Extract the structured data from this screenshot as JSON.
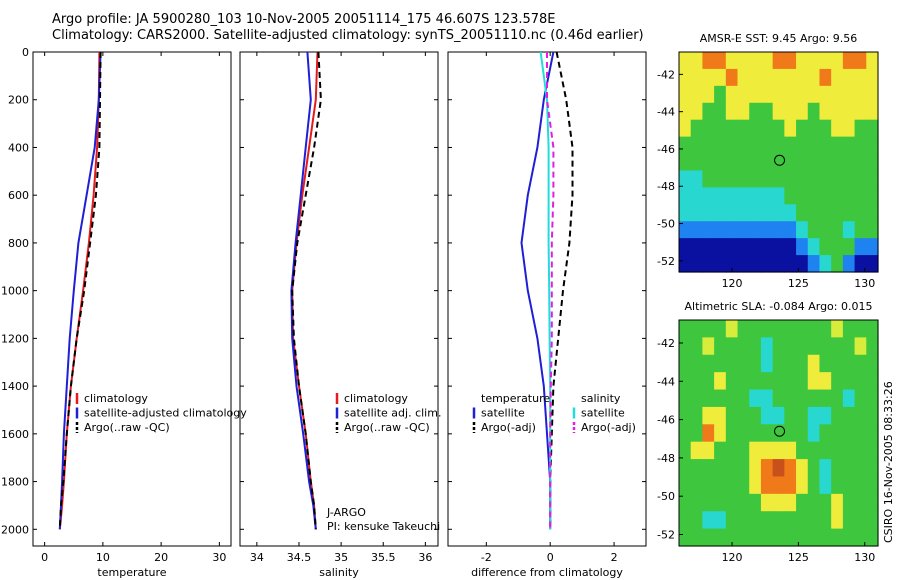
{
  "title_line1": "Argo profile: JA 5900280_103 10-Nov-2005 20051114_175 46.607S 123.578E",
  "title_line2": "Climatology: CARS2000. Satellite-adjusted climatology: synTS_20051110.nc (0.46d earlier)",
  "side_label": "CSIRO 16-Nov-2005 08:33:26",
  "colors": {
    "red": "#e41a1c",
    "blue": "#1f1fd6",
    "black": "#000000",
    "cyan": "#22dcdc",
    "magenta": "#e020e0"
  },
  "chart_data": [
    {
      "type": "line",
      "name": "temperature-panel",
      "xlabel": "temperature",
      "ylabel": "",
      "xlim": [
        -2,
        32
      ],
      "ylim": [
        2070,
        0
      ],
      "y_inverted": true,
      "xticks": [
        0,
        10,
        20,
        30
      ],
      "yticks": [
        0,
        200,
        400,
        600,
        800,
        1000,
        1200,
        1400,
        1600,
        1800,
        2000
      ],
      "legend": {
        "position": "lower-right",
        "entries": [
          "climatology",
          "satellite-adjusted climatology",
          "Argo(..raw -QC)"
        ]
      },
      "series": [
        {
          "name": "climatology",
          "color": "red",
          "dash": false,
          "x": [
            9.4,
            9.3,
            9.0,
            8.4,
            7.6,
            6.6,
            5.5,
            4.5,
            3.8,
            3.3,
            3.0,
            2.8,
            2.6
          ],
          "y": [
            0,
            200,
            400,
            600,
            800,
            1000,
            1200,
            1400,
            1600,
            1800,
            1900,
            1950,
            2000
          ]
        },
        {
          "name": "satellite-adjusted climatology",
          "color": "blue",
          "dash": false,
          "x": [
            9.6,
            9.3,
            8.6,
            7.2,
            5.8,
            5.0,
            4.3,
            3.8,
            3.3,
            3.0,
            2.8,
            2.6
          ],
          "y": [
            0,
            200,
            400,
            600,
            800,
            1000,
            1200,
            1400,
            1600,
            1800,
            1900,
            2000
          ]
        },
        {
          "name": "Argo(..raw -QC)",
          "color": "black",
          "dash": true,
          "x": [
            9.6,
            9.5,
            9.4,
            8.8,
            7.8,
            6.8,
            5.5,
            4.5,
            3.8,
            3.2,
            2.8,
            2.6
          ],
          "y": [
            0,
            200,
            400,
            600,
            800,
            1000,
            1200,
            1400,
            1600,
            1800,
            1900,
            2000
          ]
        }
      ]
    },
    {
      "type": "line",
      "name": "salinity-panel",
      "xlabel": "salinity",
      "ylabel": "",
      "xlim": [
        33.8,
        36.15
      ],
      "ylim": [
        2070,
        0
      ],
      "y_inverted": true,
      "xticks": [
        34,
        34.5,
        35,
        35.5,
        36
      ],
      "yticks": [],
      "legend": {
        "position": "lower-right",
        "entries": [
          "climatology",
          "satellite adj. clim.",
          "Argo(..raw -QC)"
        ]
      },
      "annotation": [
        "J-ARGO",
        "PI: kensuke Takeuchi"
      ],
      "series": [
        {
          "name": "climatology",
          "color": "red",
          "dash": false,
          "x": [
            34.72,
            34.7,
            34.62,
            34.54,
            34.47,
            34.42,
            34.43,
            34.5,
            34.58,
            34.64,
            34.68,
            34.7
          ],
          "y": [
            0,
            200,
            400,
            600,
            800,
            1000,
            1200,
            1400,
            1600,
            1800,
            1900,
            2000
          ]
        },
        {
          "name": "satellite adj. clim.",
          "color": "blue",
          "dash": false,
          "x": [
            34.6,
            34.64,
            34.58,
            34.52,
            34.46,
            34.41,
            34.42,
            34.47,
            34.55,
            34.62,
            34.67,
            34.7
          ],
          "y": [
            0,
            200,
            400,
            600,
            800,
            1000,
            1200,
            1400,
            1600,
            1800,
            1900,
            2000
          ]
        },
        {
          "name": "Argo(..raw -QC)",
          "color": "black",
          "dash": true,
          "x": [
            34.73,
            34.76,
            34.68,
            34.58,
            34.48,
            34.42,
            34.44,
            34.5,
            34.58,
            34.64,
            34.68,
            34.7
          ],
          "y": [
            0,
            200,
            400,
            600,
            800,
            1000,
            1200,
            1400,
            1600,
            1800,
            1900,
            2000
          ]
        }
      ]
    },
    {
      "type": "line",
      "name": "difference-panel",
      "xlabel": "difference from climatology",
      "ylabel": "",
      "xlim": [
        -3.2,
        3.0
      ],
      "ylim": [
        2070,
        0
      ],
      "y_inverted": true,
      "xticks": [
        -2,
        0,
        2
      ],
      "yticks": [],
      "legend": {
        "position": "lower-right",
        "groups": [
          {
            "heading": "temperature",
            "entries": [
              "satellite",
              "Argo(-adj)"
            ]
          },
          {
            "heading": "salinity",
            "entries": [
              "satellite",
              "Argo(-adj)"
            ]
          }
        ]
      },
      "series": [
        {
          "name": "temperature satellite",
          "color": "blue",
          "dash": false,
          "x": [
            0.1,
            -0.2,
            -0.4,
            -0.7,
            -0.9,
            -0.7,
            -0.4,
            -0.2,
            -0.1,
            0.0,
            0.0
          ],
          "y": [
            0,
            200,
            400,
            600,
            800,
            1000,
            1200,
            1400,
            1600,
            1800,
            2000
          ]
        },
        {
          "name": "temperature Argo(-adj)",
          "color": "black",
          "dash": true,
          "x": [
            0.2,
            0.5,
            0.7,
            0.7,
            0.6,
            0.4,
            0.25,
            0.1,
            0.05,
            0.0,
            0.0
          ],
          "y": [
            0,
            200,
            400,
            600,
            800,
            1000,
            1200,
            1400,
            1600,
            1800,
            2000
          ]
        },
        {
          "name": "salinity satellite",
          "color": "cyan",
          "dash": false,
          "x": [
            -0.3,
            -0.1,
            -0.05,
            -0.05,
            -0.05,
            -0.03,
            -0.02,
            0.0,
            0.0,
            0.0,
            0.0
          ],
          "y": [
            0,
            200,
            400,
            600,
            800,
            1000,
            1200,
            1400,
            1600,
            1800,
            2000
          ]
        },
        {
          "name": "salinity Argo(-adj)",
          "color": "magenta",
          "dash": true,
          "x": [
            -0.1,
            -0.1,
            0.1,
            0.1,
            0.05,
            0.05,
            0.05,
            0.02,
            0.0,
            0.0,
            0.0
          ],
          "y": [
            0,
            200,
            400,
            600,
            800,
            1000,
            1200,
            1400,
            1600,
            1800,
            2000
          ]
        }
      ]
    },
    {
      "type": "heatmap",
      "name": "sst-map",
      "title": "AMSR-E SST: 9.45 Argo: 9.56",
      "xlim": [
        116,
        131
      ],
      "ylim": [
        -52.6,
        -40.8
      ],
      "xticks": [
        120,
        125,
        130
      ],
      "yticks": [
        -42,
        -44,
        -46,
        -48,
        -50,
        -52
      ],
      "marker": {
        "lon": 123.578,
        "lat": -46.607
      },
      "grid_rows": [
        "YYOOYYYYOOYYYYOOY",
        "YYYYOYYYYYYYOYYYY",
        "YYYGYYYYYYYYYYYYY",
        "YYGGYYGGYYYGYYYYY",
        "YGGGGGGGGYGGGYYGG",
        "GGGGGGGGGGGGGGGGG",
        "GGGGGGGGGGGGGGGGG",
        "CCGGGGGGGGGGGGGGG",
        "CCCCCCCCCGGGGGGGG",
        "CCCCCCCCCCGGGGGGG",
        "BBBBBBBBBBCGGGCGG",
        "DDDDDDDDDDBCGGGBB",
        "DDDDDDDDDDDBCGBDD"
      ]
    },
    {
      "type": "heatmap",
      "name": "sla-map",
      "title": "Altimetric SLA: -0.084 Argo: 0.015",
      "xlim": [
        116,
        131
      ],
      "ylim": [
        -52.6,
        -40.8
      ],
      "xticks": [
        120,
        125,
        130
      ],
      "yticks": [
        -42,
        -44,
        -46,
        -48,
        -50,
        -52
      ],
      "marker": {
        "lon": 123.578,
        "lat": -46.607
      },
      "grid_rows": [
        "GGGGLGGGGGGGGLGGG",
        "GGLGGGGCGGGGGGGLG",
        "GGGGGGGCGGGYGGGGG",
        "GGGYGGGGGGGYYGGGG",
        "GGGGGGCCGGGGGGCGG",
        "GGYYGGGCCGGCCGGGG",
        "GGOYGGGGGGGCGGGGG",
        "GYYGGGYYYYGGGGGGG",
        "GGGGGGYOROYGCGGGG",
        "GGGGGGYOOOYGCGGGG",
        "GGGGGGGYYYGGGYGGG",
        "GGCCGGGGGGGGGYGGG",
        "GGGGGGGGGGGGGGGGG"
      ]
    }
  ]
}
